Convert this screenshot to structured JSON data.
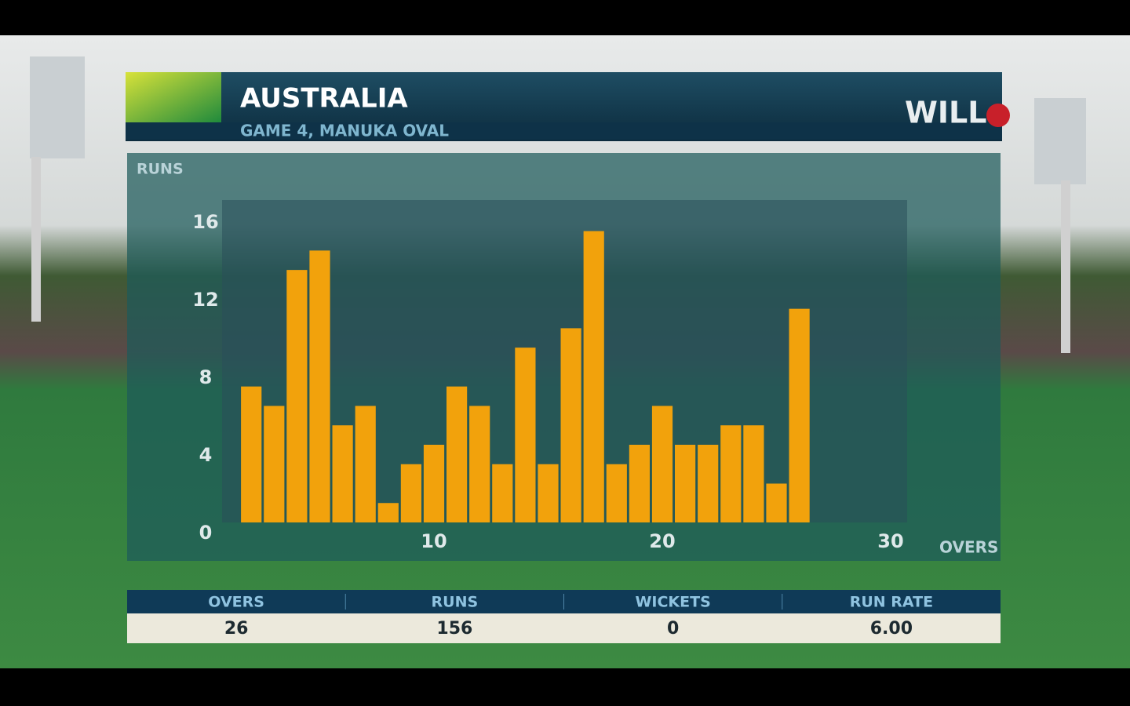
{
  "chart_data": {
    "type": "bar",
    "title": "AUSTRALIA",
    "subtitle": "GAME 4, MANUKA OVAL",
    "logo": "WILL",
    "y_label": "RUNS",
    "x_label": "OVERS",
    "x": [
      1,
      2,
      3,
      4,
      5,
      6,
      7,
      8,
      9,
      10,
      11,
      12,
      13,
      14,
      15,
      16,
      17,
      18,
      19,
      20,
      21,
      22,
      23,
      24,
      25,
      26
    ],
    "values": [
      0,
      7,
      6,
      13,
      14,
      5,
      6,
      1,
      3,
      4,
      7,
      6,
      3,
      9,
      3,
      10,
      15,
      3,
      4,
      6,
      4,
      4,
      5,
      5,
      2,
      11
    ],
    "color": "#f2a20c",
    "xlim": [
      0,
      30
    ],
    "xticks": [
      0,
      10,
      20,
      30
    ],
    "ylim": [
      0,
      16.6
    ],
    "yticks": [
      0,
      4,
      8,
      12,
      16
    ],
    "grid": false
  },
  "summary": {
    "headers": [
      "OVERS",
      "RUNS",
      "WICKETS",
      "RUN RATE"
    ],
    "values": [
      "26",
      "156",
      "0",
      "6.00"
    ]
  }
}
